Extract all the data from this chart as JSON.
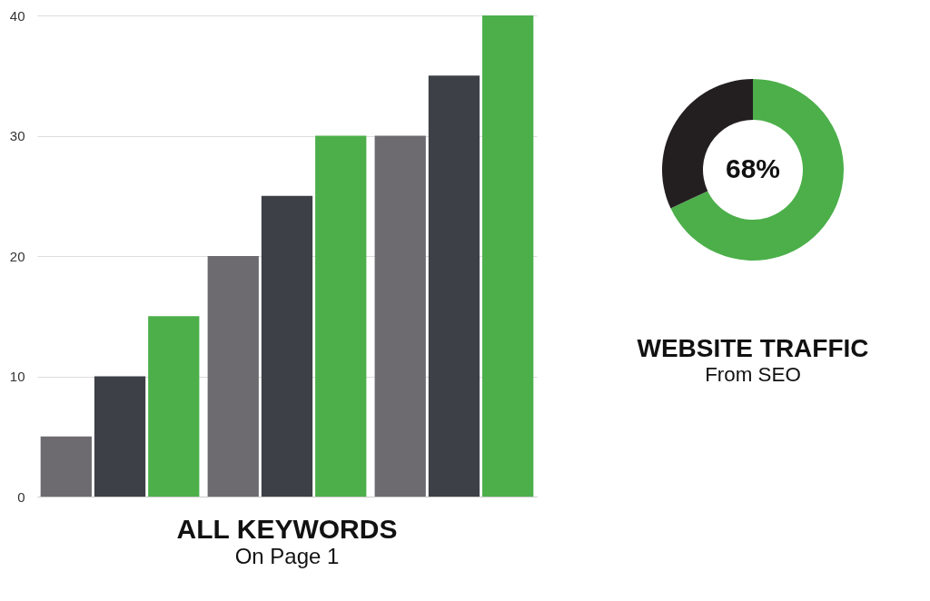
{
  "chart_data": [
    {
      "type": "bar",
      "title": "ALL KEYWORDS",
      "subtitle": "On Page 1",
      "categories": [
        null,
        null,
        null
      ],
      "series": [
        {
          "color": "#6d6b70",
          "values": [
            5,
            20,
            30
          ]
        },
        {
          "color": "#3d4046",
          "values": [
            10,
            25,
            35
          ]
        },
        {
          "color": "#4caf4a",
          "values": [
            15,
            30,
            40
          ]
        }
      ],
      "ylim": [
        0,
        40
      ],
      "yticks": [
        0,
        10,
        20,
        30,
        40
      ],
      "grid": "y"
    },
    {
      "type": "donut",
      "title": "WEBSITE TRAFFIC",
      "subtitle": "From SEO",
      "categories": [
        null,
        null
      ],
      "values": [
        68,
        32
      ],
      "colors": [
        "#4caf4a",
        "#231f20"
      ],
      "value_labels": [
        "68%",
        null
      ]
    }
  ]
}
